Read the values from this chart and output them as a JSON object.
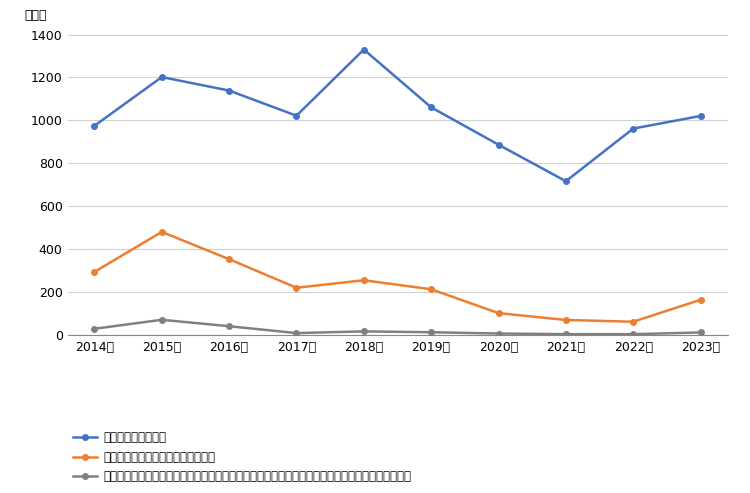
{
  "years": [
    "2014年",
    "2015年",
    "2016年",
    "2017年",
    "2018年",
    "2019年",
    "2020年",
    "2021年",
    "2022年",
    "2023年"
  ],
  "total_cases": [
    975,
    1202,
    1139,
    1022,
    1330,
    1061,
    887,
    717,
    962,
    1021
  ],
  "norovirus_cases": [
    295,
    481,
    354,
    221,
    256,
    214,
    103,
    71,
    63,
    165
  ],
  "oyster_cases": [
    30,
    72,
    42,
    10,
    18,
    14,
    8,
    5,
    5,
    13
  ],
  "line1_color": "#4472C4",
  "line2_color": "#ED7D31",
  "line3_color": "#808080",
  "line1_label": "食中毒発生事案総数",
  "line2_label": "ノロウイルスが原因の食中毒事案数",
  "line3_label": "生・加熱を問わず、カキを食べたことによるノロウイルス感染が原因の食中毒事案数（推定含む）",
  "ylabel": "（件）",
  "ylim": [
    0,
    1400
  ],
  "yticks": [
    0,
    200,
    400,
    600,
    800,
    1000,
    1200,
    1400
  ],
  "background_color": "#ffffff",
  "grid_color": "#d0d0d0",
  "marker": "o",
  "marker_size": 4,
  "line_width": 1.8
}
